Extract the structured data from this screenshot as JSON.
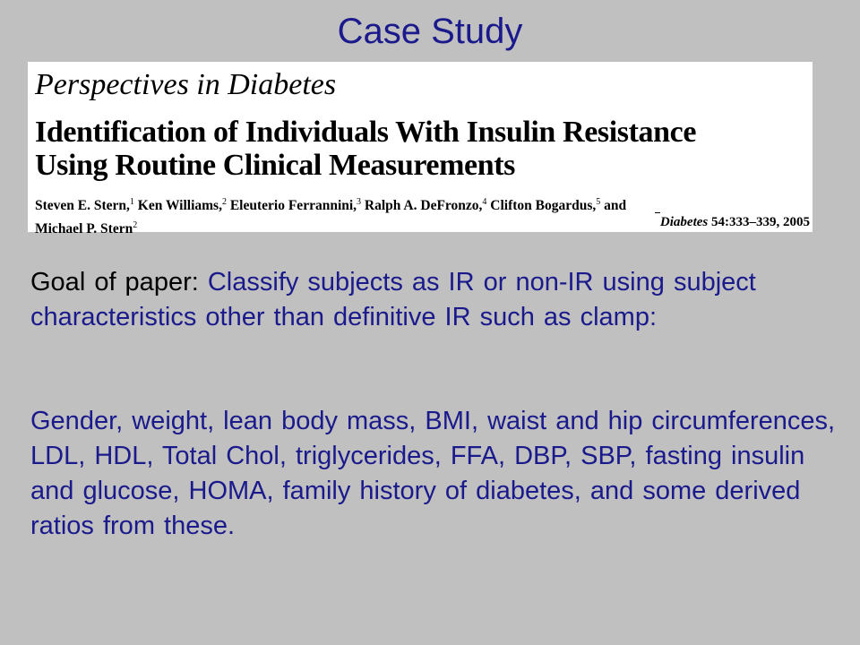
{
  "slide": {
    "title": "Case Study"
  },
  "paper": {
    "series": "Perspectives in Diabetes",
    "title_line1": "Identification of Individuals With Insulin Resistance",
    "title_line2": "Using Routine Clinical Measurements",
    "authors": [
      {
        "name": "Steven E. Stern,",
        "sup": "1"
      },
      {
        "name": "Ken Williams,",
        "sup": "2"
      },
      {
        "name": "Eleuterio Ferrannini,",
        "sup": "3"
      },
      {
        "name": "Ralph A. DeFronzo,",
        "sup": "4"
      },
      {
        "name": "Clifton Bogardus,",
        "sup": "5"
      },
      {
        "name": "and",
        "sup": ""
      },
      {
        "name": "Michael P. Stern",
        "sup": "2"
      }
    ],
    "citation_journal": "Diabetes",
    "citation_ref": "54:333–339, 2005"
  },
  "goal": {
    "label": "Goal of paper:",
    "text": "Classify subjects as IR or non-IR using subject characteristics other than definitive IR such as clamp:"
  },
  "variables": {
    "text": "Gender, weight, lean body mass, BMI, waist and hip circumferences, LDL, HDL, Total Chol, triglycerides, FFA, DBP, SBP, fasting insulin and glucose, HOMA, family history of diabetes, and some derived ratios from these."
  },
  "colors": {
    "background": "#c0c0c0",
    "accent_blue": "#1a1a8c",
    "paper_bg": "#ffffff"
  }
}
